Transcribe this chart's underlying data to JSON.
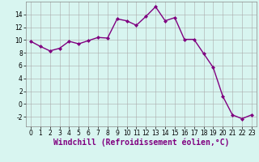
{
  "x": [
    0,
    1,
    2,
    3,
    4,
    5,
    6,
    7,
    8,
    9,
    10,
    11,
    12,
    13,
    14,
    15,
    16,
    17,
    18,
    19,
    20,
    21,
    22,
    23
  ],
  "y": [
    9.8,
    9.0,
    8.3,
    8.7,
    9.8,
    9.4,
    9.9,
    10.4,
    10.3,
    13.3,
    13.0,
    12.3,
    13.7,
    15.2,
    13.0,
    13.5,
    10.1,
    10.1,
    7.9,
    5.7,
    1.2,
    -1.7,
    -2.3,
    -1.7
  ],
  "line_color": "#800080",
  "marker": "D",
  "marker_size": 2,
  "bg_color": "#d8f5f0",
  "grid_color": "#aaaaaa",
  "xlabel": "Windchill (Refroidissement éolien,°C)",
  "xlabel_fontsize": 7,
  "ylim": [
    -3.5,
    16
  ],
  "xlim": [
    -0.5,
    23.5
  ],
  "yticks": [
    -2,
    0,
    2,
    4,
    6,
    8,
    10,
    12,
    14
  ],
  "xticks": [
    0,
    1,
    2,
    3,
    4,
    5,
    6,
    7,
    8,
    9,
    10,
    11,
    12,
    13,
    14,
    15,
    16,
    17,
    18,
    19,
    20,
    21,
    22,
    23
  ],
  "tick_fontsize": 5.5,
  "line_width": 1.0
}
